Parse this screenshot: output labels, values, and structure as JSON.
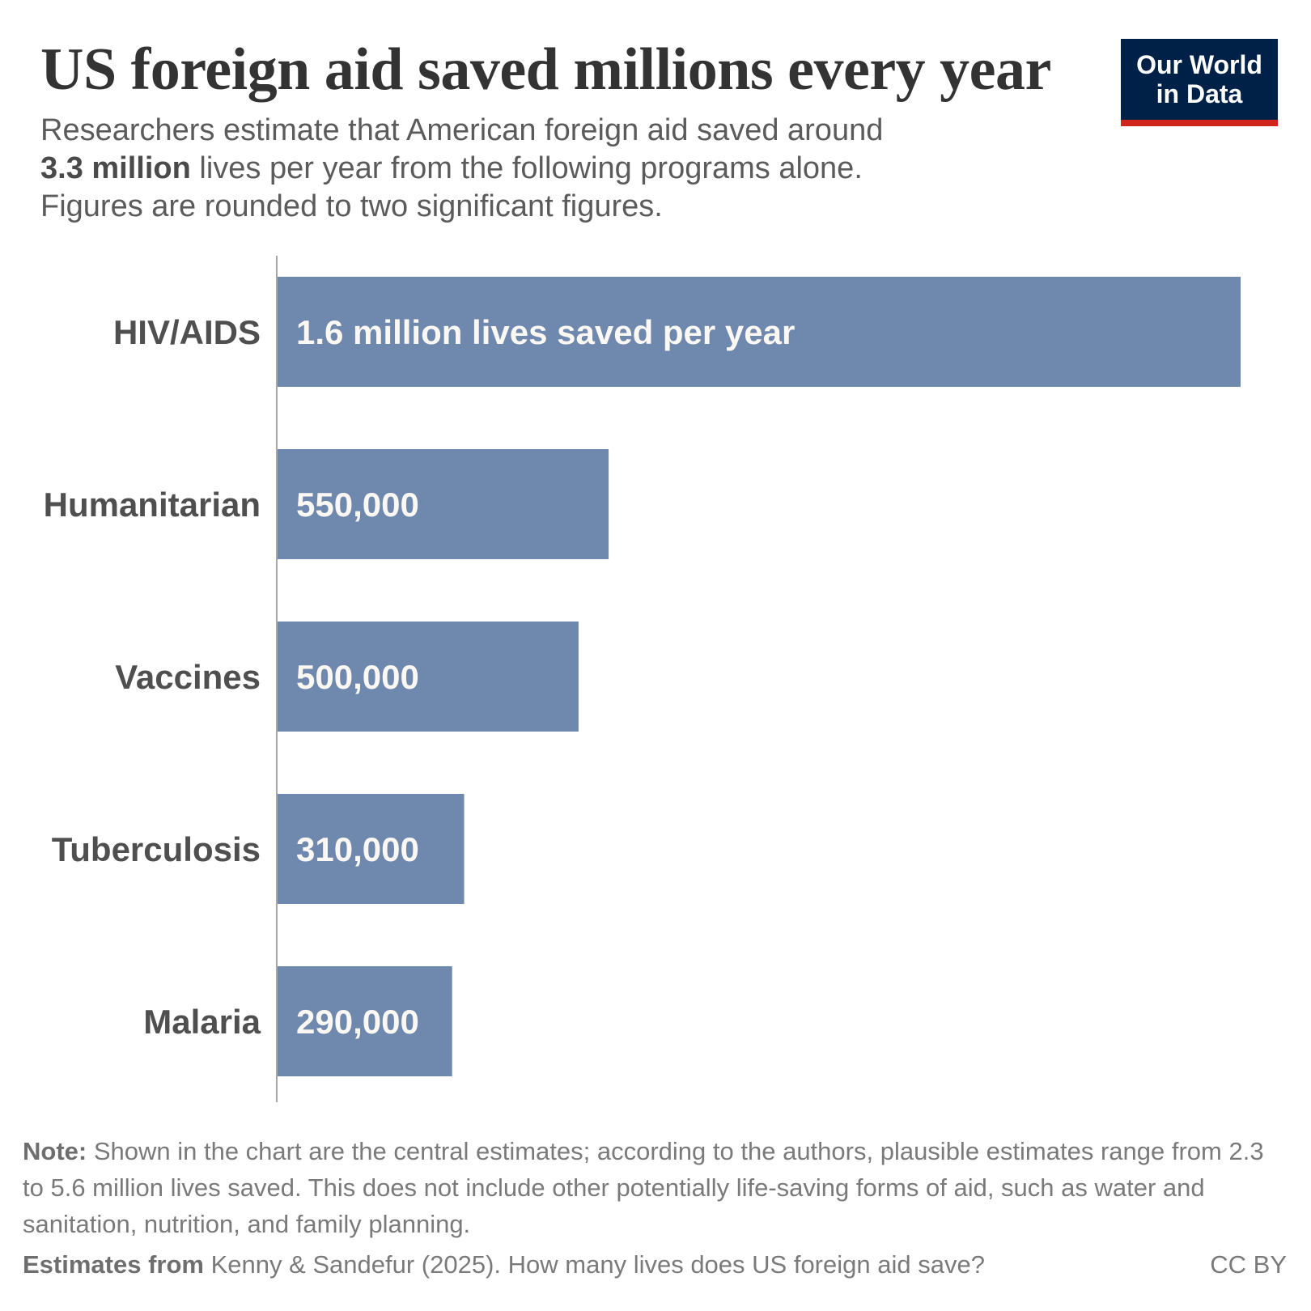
{
  "header": {
    "title": "US foreign aid saved millions every year",
    "subtitle_line1": "Researchers estimate that American foreign aid saved around",
    "subtitle_bold": "3.3 million",
    "subtitle_rest": " lives per year from the following programs alone.",
    "subtitle_line3": "Figures are rounded to two significant figures.",
    "logo_line1": "Our World",
    "logo_line2": "in Data"
  },
  "footer": {
    "note_label": "Note:",
    "note_text": " Shown in the chart are the central estimates; according to the authors, plausible estimates range from 2.3 to 5.6 million lives saved. This does not include other potentially life-saving forms of aid, such as water and sanitation, nutrition, and family planning.",
    "source_label": "Estimates from",
    "source_text": " Kenny & Sandefur (2025). How many lives does US foreign aid save?",
    "license": "CC BY"
  },
  "colors": {
    "bar": "#6f88ae",
    "logo_bg": "#002147",
    "logo_stripe": "#ce261e"
  },
  "chart_data": {
    "type": "bar",
    "orientation": "horizontal",
    "categories": [
      "HIV/AIDS",
      "Humanitarian",
      "Vaccines",
      "Tuberculosis",
      "Malaria"
    ],
    "values": [
      1600000,
      550000,
      500000,
      310000,
      290000
    ],
    "data_labels": [
      "1.6 million lives saved per year",
      "550,000",
      "500,000",
      "310,000",
      "290,000"
    ],
    "xlim": [
      0,
      1600000
    ],
    "grid": false
  }
}
